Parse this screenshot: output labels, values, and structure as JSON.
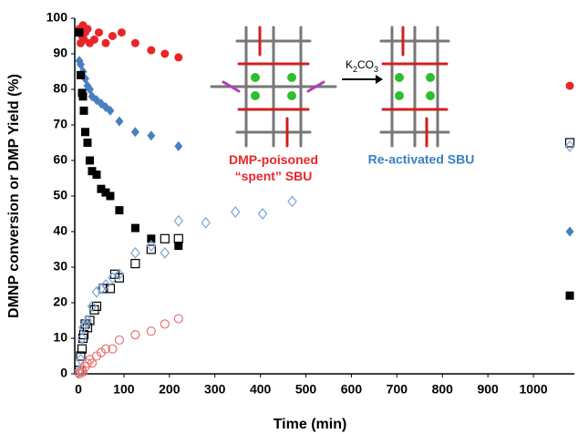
{
  "chart_data": {
    "type": "scatter",
    "xlabel": "Time (min)",
    "ylabel": "DMNP  conversion or DMP Yield (%)",
    "xlim": [
      0,
      1090
    ],
    "ylim": [
      0,
      100
    ],
    "xticks": [
      0,
      100,
      200,
      300,
      400,
      500,
      600,
      700,
      800,
      900,
      1000
    ],
    "yticks": [
      0,
      10,
      20,
      30,
      40,
      50,
      60,
      70,
      80,
      90,
      100
    ],
    "grid": false,
    "annotations": {
      "reagent": [
        "K",
        "2",
        "CO",
        "3"
      ],
      "left_label": [
        "DMP-poisoned",
        "“spent” SBU"
      ],
      "right_label": "Re-activated SBU"
    },
    "series": [
      {
        "marker": "circle",
        "filled": true,
        "color": "#e8262a",
        "x": [
          2,
          5,
          8,
          10,
          12,
          15,
          20,
          25,
          35,
          45,
          60,
          75,
          95,
          125,
          160,
          190,
          220,
          1080
        ],
        "values": [
          97,
          93,
          95,
          98,
          94,
          96,
          97,
          93,
          94,
          96,
          93,
          95,
          96,
          93,
          91,
          90,
          89,
          81
        ]
      },
      {
        "marker": "diamond",
        "filled": true,
        "color": "#4a7fbf",
        "x": [
          2,
          5,
          10,
          15,
          20,
          25,
          30,
          40,
          50,
          60,
          70,
          90,
          125,
          160,
          220,
          1080
        ],
        "values": [
          88,
          87,
          85,
          83,
          81,
          80,
          78,
          77,
          76,
          75,
          74,
          71,
          68,
          67,
          64,
          40
        ]
      },
      {
        "marker": "square",
        "filled": true,
        "color": "#000000",
        "x": [
          2,
          5,
          8,
          10,
          12,
          15,
          20,
          25,
          30,
          40,
          50,
          60,
          70,
          90,
          125,
          160,
          220,
          1080
        ],
        "values": [
          96,
          84,
          79,
          78,
          74,
          68,
          65,
          60,
          57,
          56,
          52,
          51,
          50,
          46,
          41,
          38,
          36,
          22
        ]
      },
      {
        "marker": "square",
        "filled": false,
        "color": "#000000",
        "x": [
          2,
          5,
          8,
          10,
          12,
          15,
          20,
          25,
          35,
          40,
          55,
          70,
          80,
          90,
          125,
          160,
          190,
          220,
          1080
        ],
        "values": [
          1,
          5,
          7,
          10,
          11,
          14,
          13,
          15,
          18,
          19,
          24,
          24,
          28,
          27,
          31,
          35,
          38,
          38,
          65
        ]
      },
      {
        "marker": "diamond",
        "filled": false,
        "color": "#7aa6d8",
        "x": [
          2,
          5,
          8,
          10,
          15,
          20,
          30,
          40,
          50,
          60,
          75,
          90,
          125,
          160,
          190,
          220,
          280,
          345,
          405,
          470,
          1080
        ],
        "values": [
          1,
          4,
          10,
          13,
          14,
          15,
          19,
          23,
          24,
          25,
          27,
          28,
          34,
          36,
          34,
          43,
          42.5,
          45.5,
          45,
          48.5,
          64
        ]
      },
      {
        "marker": "circle",
        "filled": false,
        "color": "#e87070",
        "x": [
          2,
          5,
          8,
          10,
          15,
          20,
          25,
          30,
          40,
          50,
          60,
          75,
          90,
          125,
          160,
          190,
          220
        ],
        "values": [
          0,
          0.5,
          1,
          0.5,
          2,
          3,
          4,
          3,
          5,
          6,
          7,
          7,
          9.5,
          11,
          12,
          14,
          15.5
        ]
      }
    ]
  }
}
